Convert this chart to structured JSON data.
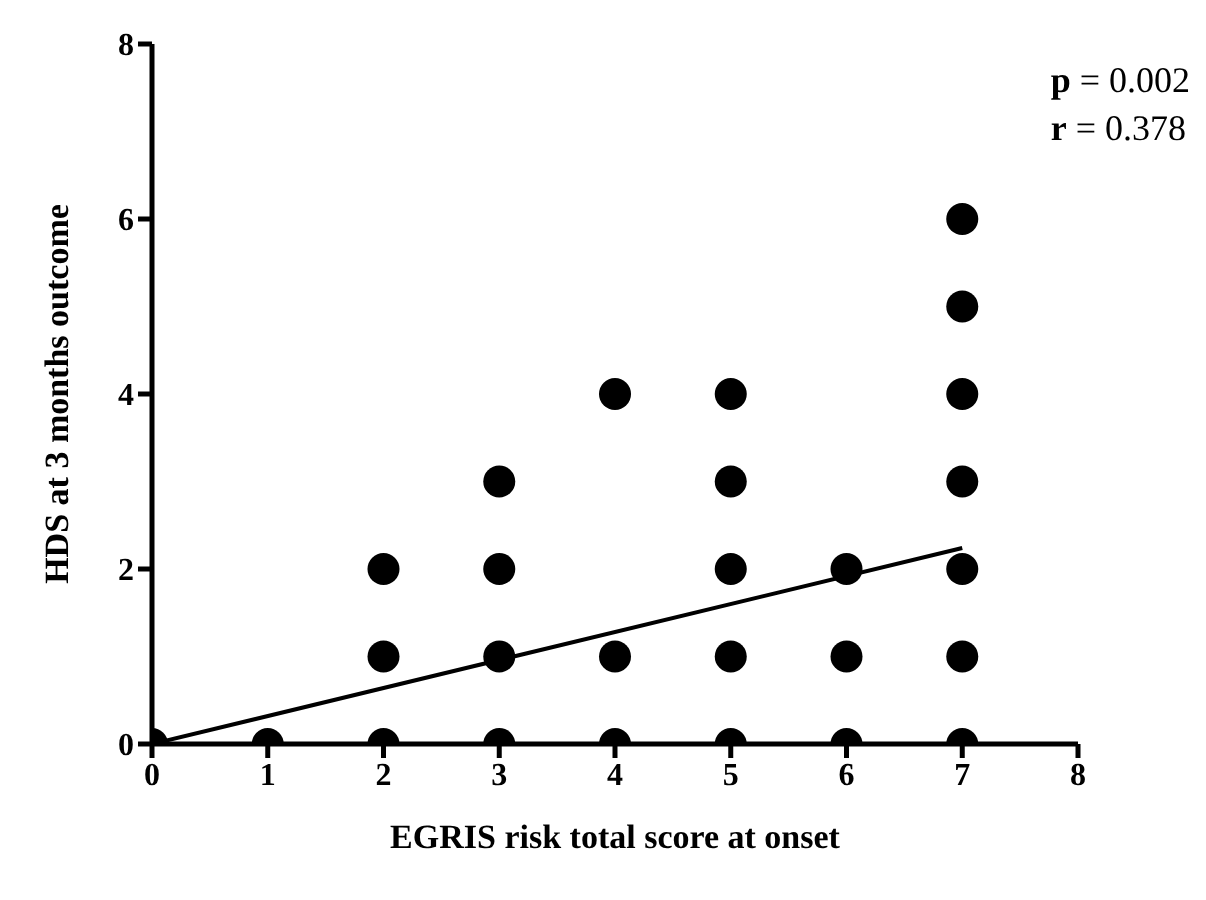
{
  "chart_data": {
    "type": "scatter",
    "xlabel": "EGRIS risk total score  at onset",
    "ylabel": "HDS at 3 months outcome",
    "annotations": [
      "p = 0.002",
      "r = 0.378"
    ],
    "series": [
      {
        "color": "#000000",
        "marker": "circle",
        "x": [
          0,
          1,
          2,
          2,
          2,
          3,
          3,
          3,
          3,
          4,
          4,
          4,
          5,
          5,
          5,
          5,
          5,
          6,
          6,
          6,
          7,
          7,
          7,
          7,
          7,
          7,
          7
        ],
        "values": [
          0,
          0,
          0,
          1,
          2,
          0,
          1,
          2,
          3,
          0,
          1,
          4,
          0,
          1,
          2,
          3,
          4,
          0,
          1,
          2,
          0,
          1,
          2,
          3,
          4,
          5,
          6
        ]
      },
      {
        "type": "line",
        "color": "#000000",
        "marker": "none",
        "x": [
          0,
          7
        ],
        "values": [
          0,
          2.24
        ]
      }
    ],
    "xlim": [
      0,
      8
    ],
    "xticks": [
      0,
      1,
      2,
      3,
      4,
      5,
      6,
      7,
      8
    ],
    "ylim": [
      0,
      8
    ],
    "yticks": [
      0,
      2,
      4,
      6,
      8
    ],
    "grid": false,
    "legend": false,
    "line_style": "solid"
  }
}
